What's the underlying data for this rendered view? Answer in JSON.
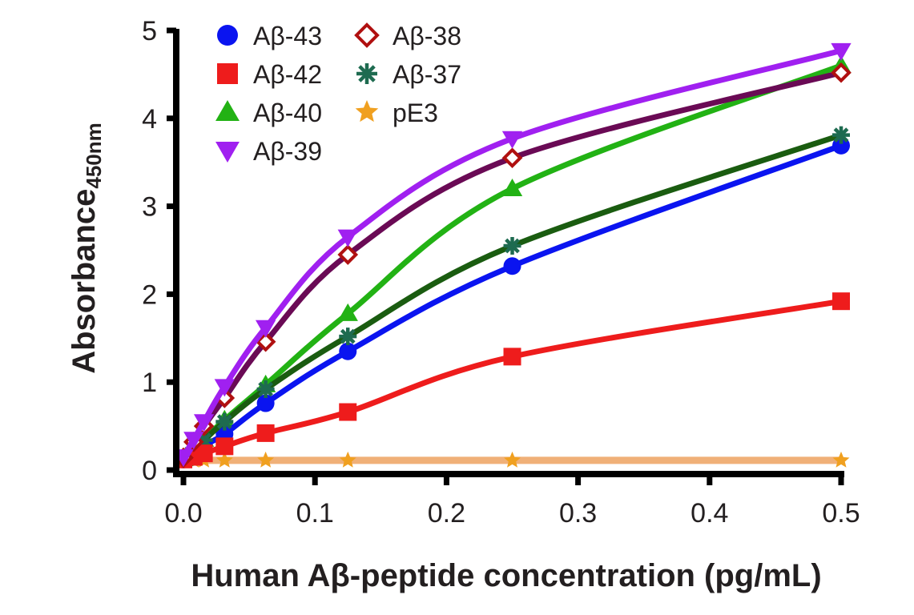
{
  "chart_data": {
    "type": "line",
    "title": "",
    "xlabel": "Human Aβ-peptide concentration (pg/mL)",
    "ylabel": "Absorbance",
    "ylabel_subscript": "450nm",
    "xlim": [
      0,
      0.5
    ],
    "ylim": [
      0,
      5
    ],
    "x_ticks": [
      "0.0",
      "0.1",
      "0.2",
      "0.3",
      "0.4",
      "0.5"
    ],
    "x_tick_values": [
      0,
      0.1,
      0.2,
      0.3,
      0.4,
      0.5
    ],
    "y_ticks": [
      "0",
      "1",
      "2",
      "3",
      "4",
      "5"
    ],
    "y_tick_values": [
      0,
      1,
      2,
      3,
      4,
      5
    ],
    "grid": false,
    "legend_position": "top-left",
    "x": [
      0,
      0.0078,
      0.0156,
      0.03125,
      0.0625,
      0.125,
      0.25,
      0.5
    ],
    "series": [
      {
        "name": "Aβ-43",
        "color": "#0a14f0",
        "marker": "circle",
        "values": [
          0.12,
          0.2,
          0.28,
          0.41,
          0.76,
          1.35,
          2.32,
          3.69
        ]
      },
      {
        "name": "Aβ-42",
        "color": "#ee1c1c",
        "marker": "square",
        "values": [
          0.12,
          0.15,
          0.19,
          0.27,
          0.42,
          0.66,
          1.29,
          1.92
        ]
      },
      {
        "name": "Aβ-40",
        "color": "#22b214",
        "marker": "triangle-up",
        "values": [
          0.13,
          0.25,
          0.35,
          0.57,
          0.97,
          1.78,
          3.2,
          4.6
        ]
      },
      {
        "name": "Aβ-39",
        "color": "#a020f0",
        "marker": "triangle-down",
        "values": [
          0.15,
          0.35,
          0.55,
          0.95,
          1.62,
          2.65,
          3.77,
          4.77
        ]
      },
      {
        "name": "Aβ-38",
        "color": "#6a0a55",
        "marker": "diamond-open",
        "marker_color": "#b01010",
        "values": [
          0.14,
          0.32,
          0.5,
          0.82,
          1.46,
          2.45,
          3.55,
          4.52
        ]
      },
      {
        "name": "Aβ-37",
        "color": "#1a5c10",
        "marker": "asterisk",
        "marker_color": "#1e6b50",
        "values": [
          0.13,
          0.24,
          0.34,
          0.55,
          0.92,
          1.52,
          2.55,
          3.81
        ]
      },
      {
        "name": "pE3",
        "color": "#f0b078",
        "marker": "star",
        "marker_color": "#f0a020",
        "values": [
          0.11,
          0.11,
          0.11,
          0.11,
          0.11,
          0.11,
          0.11,
          0.11
        ]
      }
    ]
  }
}
